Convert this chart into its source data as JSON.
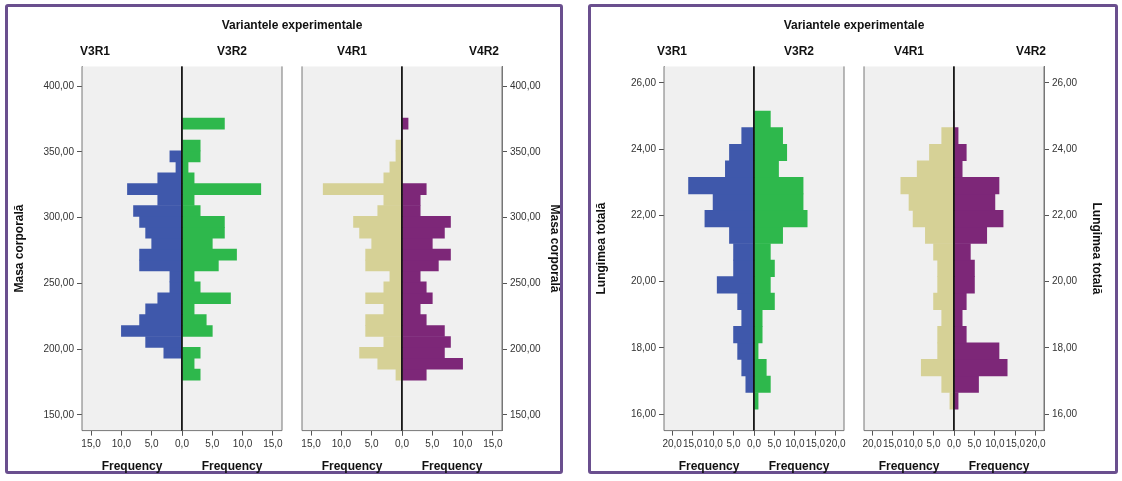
{
  "chart_data": [
    {
      "type": "histogram",
      "orientation": "horizontal",
      "annotations": [
        "Variantele experimentale"
      ],
      "title": "V3R1",
      "xlabel": "Frequency",
      "ylabel": "Masa corporală",
      "color": "#3f58ab",
      "bins": [
        176.4,
        184.7,
        193.0,
        201.3,
        209.6,
        217.9,
        226.2,
        234.5,
        242.8,
        251.1,
        259.4,
        267.7,
        276.0,
        284.3,
        292.6,
        300.9,
        309.2,
        317.5,
        325.8,
        334.1,
        342.4,
        350.7,
        359.0,
        367.3,
        375.6
      ],
      "values": [
        0,
        0,
        3,
        6,
        10,
        7,
        6,
        4,
        2,
        2,
        7,
        7,
        5,
        6,
        7,
        8,
        4,
        9,
        4,
        1,
        2,
        0,
        0,
        0
      ],
      "xlim": [
        16.5,
        0
      ],
      "xticks": [
        {
          "value": 15,
          "label": "15,0"
        },
        {
          "value": 10,
          "label": "10,0"
        },
        {
          "value": 5,
          "label": "5,0"
        },
        {
          "value": 0,
          "label": null
        }
      ],
      "ylim": [
        138,
        415
      ],
      "yticks": [
        {
          "value": 150,
          "label": "150,00"
        },
        {
          "value": 200,
          "label": "200,00"
        },
        {
          "value": 250,
          "label": "250,00"
        },
        {
          "value": 300,
          "label": "300,00"
        },
        {
          "value": 350,
          "label": "350,00"
        },
        {
          "value": 400,
          "label": "400,00"
        }
      ]
    },
    {
      "type": "histogram",
      "orientation": "horizontal",
      "title": "V3R2",
      "xlabel": "Frequency",
      "color": "#2eb84c",
      "tick_labels": "x",
      "bins": [
        176.4,
        184.7,
        193.0,
        201.3,
        209.6,
        217.9,
        226.2,
        234.5,
        242.8,
        251.1,
        259.4,
        267.7,
        276.0,
        284.3,
        292.6,
        300.9,
        309.2,
        317.5,
        325.8,
        334.1,
        342.4,
        350.7,
        359.0,
        367.3,
        375.6
      ],
      "values": [
        3,
        2,
        3,
        0,
        5,
        4,
        2,
        8,
        3,
        2,
        6,
        9,
        5,
        7,
        7,
        3,
        2,
        13,
        2,
        1,
        3,
        3,
        0,
        7
      ],
      "xlim": [
        0,
        16.5
      ],
      "xticks": [
        {
          "value": 0,
          "label": "0,0"
        },
        {
          "value": 5,
          "label": "5,0"
        },
        {
          "value": 10,
          "label": "10,0"
        },
        {
          "value": 15,
          "label": "15,0"
        }
      ],
      "ylim": [
        138,
        415
      ]
    },
    {
      "type": "histogram",
      "orientation": "horizontal",
      "title": "V4R1",
      "xlabel": "Frequency",
      "color": "#d6d196",
      "tick_labels": "x",
      "bins": [
        176.4,
        184.7,
        193.0,
        201.3,
        209.6,
        217.9,
        226.2,
        234.5,
        242.8,
        251.1,
        259.4,
        267.7,
        276.0,
        284.3,
        292.6,
        300.9,
        309.2,
        317.5,
        325.8,
        334.1,
        342.4,
        350.7,
        359.0,
        367.3,
        375.6
      ],
      "values": [
        1,
        4,
        7,
        3,
        6,
        6,
        3,
        6,
        3,
        2,
        6,
        6,
        5,
        7,
        8,
        4,
        3,
        13,
        3,
        2,
        1,
        1,
        0,
        0
      ],
      "xlim": [
        16.5,
        0
      ],
      "xticks": [
        {
          "value": 15,
          "label": "15,0"
        },
        {
          "value": 10,
          "label": "10,0"
        },
        {
          "value": 5,
          "label": "5,0"
        },
        {
          "value": 0,
          "label": null
        }
      ],
      "ylim": [
        138,
        415
      ]
    },
    {
      "type": "histogram",
      "orientation": "horizontal",
      "title": "V4R2",
      "xlabel": "Frequency",
      "ylabel": "Masa corporală",
      "color": "#7d2778",
      "bins": [
        176.4,
        184.7,
        193.0,
        201.3,
        209.6,
        217.9,
        226.2,
        234.5,
        242.8,
        251.1,
        259.4,
        267.7,
        276.0,
        284.3,
        292.6,
        300.9,
        309.2,
        317.5,
        325.8,
        334.1,
        342.4,
        350.7,
        359.0,
        367.3,
        375.6
      ],
      "values": [
        4,
        10,
        7,
        8,
        7,
        4,
        3,
        5,
        4,
        3,
        6,
        8,
        5,
        7,
        8,
        3,
        3,
        4,
        0,
        0,
        0,
        0,
        0,
        1
      ],
      "xlim": [
        0,
        16.5
      ],
      "xticks": [
        {
          "value": 0,
          "label": "0,0"
        },
        {
          "value": 5,
          "label": "5,0"
        },
        {
          "value": 10,
          "label": "10,0"
        },
        {
          "value": 15,
          "label": "15,0"
        }
      ],
      "ylim": [
        138,
        415
      ],
      "yticks": [
        {
          "value": 150,
          "label": "150,00"
        },
        {
          "value": 200,
          "label": "200,00"
        },
        {
          "value": 250,
          "label": "250,00"
        },
        {
          "value": 300,
          "label": "300,00"
        },
        {
          "value": 350,
          "label": "350,00"
        },
        {
          "value": 400,
          "label": "400,00"
        }
      ]
    },
    {
      "type": "histogram",
      "orientation": "horizontal",
      "annotations": [
        "Variantele experimentale"
      ],
      "title": "V3R1",
      "xlabel": "Frequency",
      "ylabel": "Lungimea totală",
      "color": "#3f58ab",
      "bins": [
        16.15,
        16.65,
        17.15,
        17.65,
        18.15,
        18.65,
        19.15,
        19.65,
        20.15,
        20.65,
        21.15,
        21.65,
        22.15,
        22.65,
        23.15,
        23.65,
        24.15,
        24.65,
        25.15
      ],
      "values": [
        0,
        2,
        3,
        4,
        5,
        3,
        4,
        9,
        5,
        5,
        6,
        12,
        10,
        16,
        7,
        6,
        3,
        0
      ],
      "xlim": [
        22,
        0
      ],
      "xticks": [
        {
          "value": 20,
          "label": "20,0"
        },
        {
          "value": 15,
          "label": "15,0"
        },
        {
          "value": 10,
          "label": "10,0"
        },
        {
          "value": 5,
          "label": "5,0"
        },
        {
          "value": 0,
          "label": null
        }
      ],
      "ylim": [
        15.5,
        26.5
      ],
      "yticks": [
        {
          "value": 16,
          "label": "16,00"
        },
        {
          "value": 18,
          "label": "18,00"
        },
        {
          "value": 20,
          "label": "20,00"
        },
        {
          "value": 22,
          "label": "22,00"
        },
        {
          "value": 24,
          "label": "24,00"
        },
        {
          "value": 26,
          "label": "26,00"
        }
      ]
    },
    {
      "type": "histogram",
      "orientation": "horizontal",
      "title": "V3R2",
      "xlabel": "Frequency",
      "color": "#2eb84c",
      "tick_labels": "x",
      "bins": [
        16.15,
        16.65,
        17.15,
        17.65,
        18.15,
        18.65,
        19.15,
        19.65,
        20.15,
        20.65,
        21.15,
        21.65,
        22.15,
        22.65,
        23.15,
        23.65,
        24.15,
        24.65,
        25.15
      ],
      "values": [
        1,
        4,
        3,
        1,
        2,
        2,
        5,
        4,
        5,
        4,
        7,
        13,
        12,
        12,
        6,
        8,
        7,
        4
      ],
      "xlim": [
        0,
        22
      ],
      "xticks": [
        {
          "value": 0,
          "label": "0,0"
        },
        {
          "value": 5,
          "label": "5,0"
        },
        {
          "value": 10,
          "label": "10,0"
        },
        {
          "value": 15,
          "label": "15,0"
        },
        {
          "value": 20,
          "label": "20,0"
        }
      ],
      "ylim": [
        15.5,
        26.5
      ]
    },
    {
      "type": "histogram",
      "orientation": "horizontal",
      "title": "V4R1",
      "xlabel": "Frequency",
      "color": "#d6d196",
      "tick_labels": "x",
      "bins": [
        16.15,
        16.65,
        17.15,
        17.65,
        18.15,
        18.65,
        19.15,
        19.65,
        20.15,
        20.65,
        21.15,
        21.65,
        22.15,
        22.65,
        23.15,
        23.65,
        24.15,
        24.65,
        25.15
      ],
      "values": [
        1,
        3,
        8,
        4,
        4,
        3,
        5,
        4,
        4,
        5,
        7,
        10,
        11,
        13,
        9,
        6,
        3,
        0
      ],
      "xlim": [
        22,
        0
      ],
      "xticks": [
        {
          "value": 20,
          "label": "20,0"
        },
        {
          "value": 15,
          "label": "15,0"
        },
        {
          "value": 10,
          "label": "10,0"
        },
        {
          "value": 5,
          "label": "5,0"
        },
        {
          "value": 0,
          "label": null
        }
      ],
      "ylim": [
        15.5,
        26.5
      ]
    },
    {
      "type": "histogram",
      "orientation": "horizontal",
      "title": "V4R2",
      "xlabel": "Frequency",
      "ylabel": "Lungimea totală",
      "color": "#7d2778",
      "bins": [
        16.15,
        16.65,
        17.15,
        17.65,
        18.15,
        18.65,
        19.15,
        19.65,
        20.15,
        20.65,
        21.15,
        21.65,
        22.15,
        22.65,
        23.15,
        23.65,
        24.15,
        24.65,
        25.15
      ],
      "values": [
        1,
        6,
        13,
        11,
        3,
        2,
        3,
        5,
        5,
        4,
        8,
        12,
        10,
        11,
        2,
        3,
        1,
        0
      ],
      "xlim": [
        0,
        22
      ],
      "xticks": [
        {
          "value": 0,
          "label": "0,0"
        },
        {
          "value": 5,
          "label": "5,0"
        },
        {
          "value": 10,
          "label": "10,0"
        },
        {
          "value": 15,
          "label": "15,0"
        },
        {
          "value": 20,
          "label": "20,0"
        }
      ],
      "ylim": [
        15.5,
        26.5
      ],
      "yticks": [
        {
          "value": 16,
          "label": "16,00"
        },
        {
          "value": 18,
          "label": "18,00"
        },
        {
          "value": 20,
          "label": "20,00"
        },
        {
          "value": 22,
          "label": "22,00"
        },
        {
          "value": 24,
          "label": "24,00"
        },
        {
          "value": 26,
          "label": "26,00"
        }
      ]
    }
  ]
}
